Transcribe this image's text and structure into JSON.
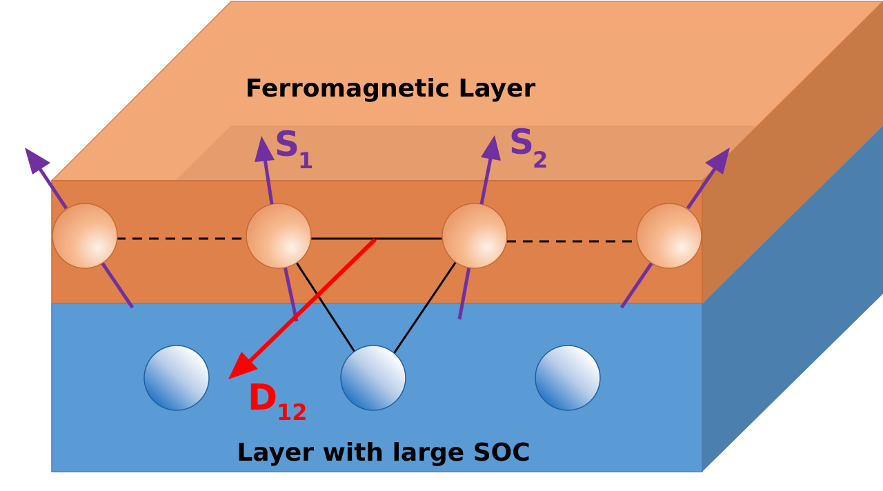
{
  "layers": {
    "top_label": "Ferromagnetic Layer",
    "bottom_label": "Layer with large SOC"
  },
  "spins": {
    "s1_main": "S",
    "s1_sub": "1",
    "s2_main": "S",
    "s2_sub": "2"
  },
  "dmi": {
    "main": "D",
    "sub": "12"
  },
  "colors": {
    "ferromagnet": "#E0834A",
    "soc_layer": "#5B9BD5",
    "spin_arrow": "#7030A0",
    "dmi_vector": "#FF0000"
  }
}
